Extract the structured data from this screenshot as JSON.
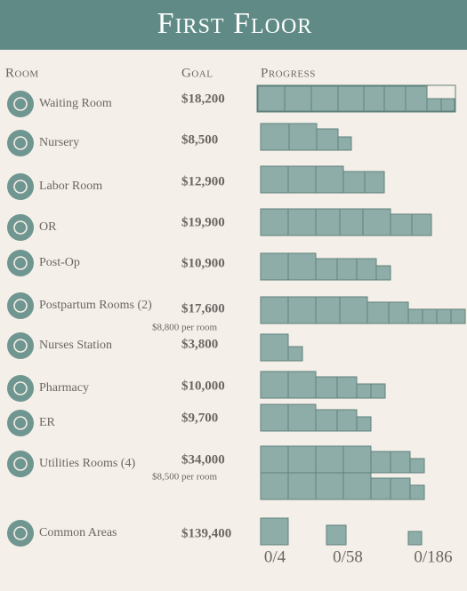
{
  "header": {
    "title": "First Floor"
  },
  "columns": [
    "Room",
    "Goal",
    "Progress"
  ],
  "rows": [
    {
      "room": "Waiting Room",
      "goal": "$18,200"
    },
    {
      "room": "Nursery",
      "goal": "$8,500"
    },
    {
      "room": "Labor Room",
      "goal": "$12,900"
    },
    {
      "room": "OR",
      "goal": "$19,900"
    },
    {
      "room": "Post-Op",
      "goal": "$10,900"
    },
    {
      "room": "Postpartum Rooms (2)",
      "goal": "$17,600",
      "note": "$8,800 per room"
    },
    {
      "room": "Nurses Station",
      "goal": "$3,800"
    },
    {
      "room": "Pharmacy",
      "goal": "$10,000"
    },
    {
      "room": "ER",
      "goal": "$9,700"
    },
    {
      "room": "Utilities Rooms (4)",
      "goal": "$34,000",
      "note": "$8,500 per room"
    }
  ],
  "common": {
    "room": "Common Areas",
    "goal": "$139,400",
    "counts": [
      "0/4",
      "0/58",
      "0/186"
    ]
  }
}
